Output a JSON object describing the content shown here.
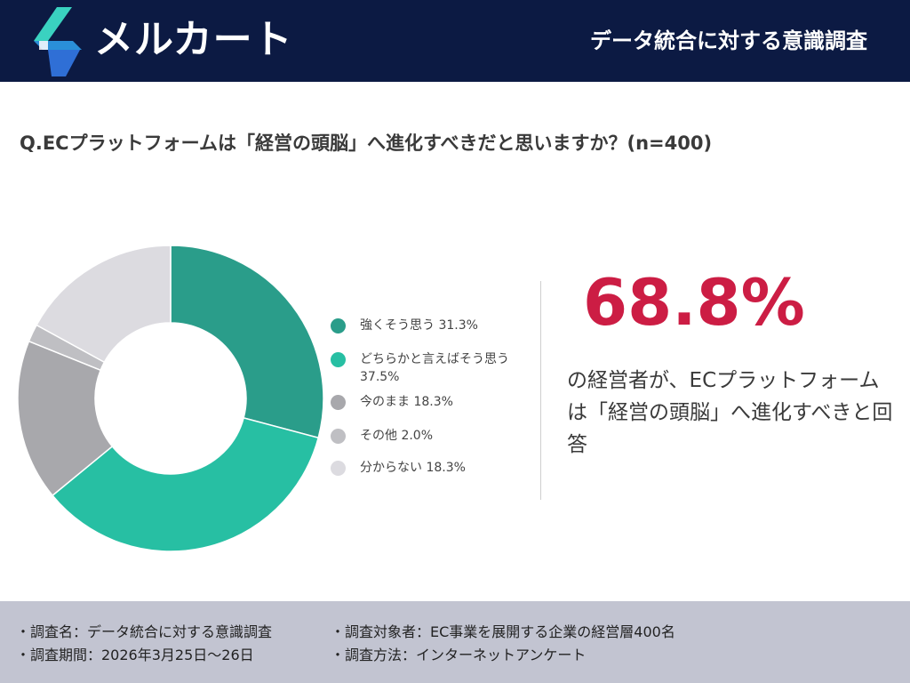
{
  "header": {
    "brand": "メルカート",
    "title": "データ統合に対する意識調査"
  },
  "question": "Q.ECプラットフォームは「経営の頭脳」へ進化すべきだと思いますか？(n=400)",
  "chart_data": {
    "type": "pie",
    "labels": [
      "強くそう思う",
      "どちらかと言えばそう思う",
      "今のまま",
      "その他",
      "分からない"
    ],
    "values": [
      31.3,
      37.5,
      18.3,
      2.0,
      18.3
    ],
    "unit": "%",
    "colors": [
      "#2a9d8a",
      "#27bfa3",
      "#a8a8ac",
      "#bfbfc3",
      "#dcdbe0"
    ]
  },
  "legend": [
    {
      "label": "強くそう思う 31.3%",
      "color": "#2a9d8a"
    },
    {
      "label": "どちらかと言えばそう思う 37.5%",
      "color": "#27bfa3"
    },
    {
      "label": "今のまま 18.3%",
      "color": "#a8a8ac"
    },
    {
      "label": "その他 2.0%",
      "color": "#bfbfc3"
    },
    {
      "label": "分からない 18.3%",
      "color": "#dcdbe0"
    }
  ],
  "highlight": {
    "percent": "68.8%",
    "text": "の経営者が、ECプラットフォームは「経営の頭脳」へ進化すべきと回答"
  },
  "footer": {
    "survey_name": "・調査名：データ統合に対する意識調査",
    "survey_target": "・調査対象者：EC事業を展開する企業の経営層400名",
    "survey_period": "・調査期間：2026年3月25日〜26日",
    "survey_method": "・調査方法：インターネットアンケート"
  }
}
